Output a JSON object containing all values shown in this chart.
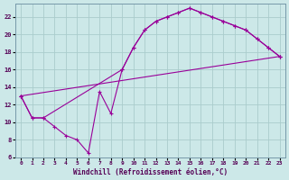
{
  "xlabel": "Windchill (Refroidissement éolien,°C)",
  "xlim": [
    -0.5,
    23.5
  ],
  "ylim": [
    6,
    23.5
  ],
  "yticks": [
    6,
    8,
    10,
    12,
    14,
    16,
    18,
    20,
    22
  ],
  "xticks": [
    0,
    1,
    2,
    3,
    4,
    5,
    6,
    7,
    8,
    9,
    10,
    11,
    12,
    13,
    14,
    15,
    16,
    17,
    18,
    19,
    20,
    21,
    22,
    23
  ],
  "bg_color": "#cce8e8",
  "grid_color": "#aacccc",
  "line_color": "#990099",
  "line1_x": [
    0,
    1,
    2,
    3,
    4,
    5,
    6,
    7,
    8,
    9,
    10,
    11,
    12,
    13,
    14,
    15,
    16,
    17,
    18,
    19,
    20,
    21,
    22,
    23
  ],
  "line1_y": [
    13.0,
    10.5,
    10.5,
    9.5,
    8.5,
    8.0,
    6.5,
    13.5,
    11.0,
    16.0,
    18.5,
    20.5,
    21.5,
    22.0,
    22.5,
    23.0,
    22.5,
    22.0,
    21.5,
    21.0,
    20.5,
    19.5,
    18.5,
    17.5
  ],
  "line2_x": [
    0,
    1,
    2,
    9,
    10,
    11,
    12,
    13,
    14,
    15,
    16,
    17,
    18,
    19,
    20,
    21,
    22,
    23
  ],
  "line2_y": [
    13.0,
    10.5,
    10.5,
    16.0,
    18.5,
    20.5,
    21.5,
    22.0,
    22.5,
    23.0,
    22.5,
    22.0,
    21.5,
    21.0,
    20.5,
    19.5,
    18.5,
    17.5
  ],
  "line3_x": [
    0,
    23
  ],
  "line3_y": [
    13.0,
    17.5
  ]
}
